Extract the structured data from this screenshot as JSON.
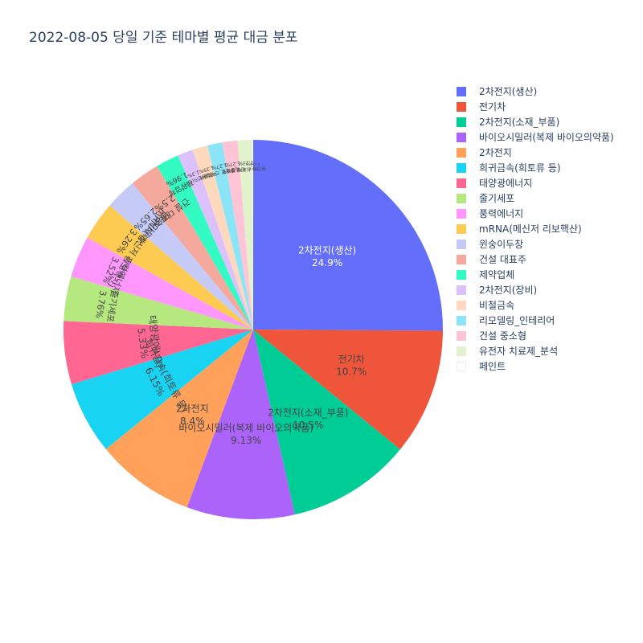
{
  "chart_data": {
    "type": "pie",
    "title": "2022-08-05 당일 기준 테마별 평균 대금 분포",
    "slices": [
      {
        "label": "2차전지(생산)",
        "value": 24.9,
        "text": "24.9%",
        "color": "#636efa"
      },
      {
        "label": "전기차",
        "value": 10.7,
        "text": "10.7%",
        "color": "#EF553B"
      },
      {
        "label": "2차전지(소재_부품)",
        "value": 10.5,
        "text": "10.5%",
        "color": "#00cc96"
      },
      {
        "label": "바이오시밀러(복제 바이오의약품)",
        "value": 9.13,
        "text": "9.13%",
        "color": "#ab63fa"
      },
      {
        "label": "2차전지",
        "value": 8.4,
        "text": "8.4%",
        "color": "#FFA15A"
      },
      {
        "label": "희귀금속(희토류 등)",
        "value": 6.15,
        "text": "6.15%",
        "color": "#19d3f3"
      },
      {
        "label": "태양광에너지",
        "value": 5.33,
        "text": "5.33%",
        "color": "#FF6692"
      },
      {
        "label": "줄기세포",
        "value": 3.76,
        "text": "3.76%",
        "color": "#B6E880"
      },
      {
        "label": "풍력에너지",
        "value": 3.52,
        "text": "3.52%",
        "color": "#FF97FF"
      },
      {
        "label": "mRNA(메신저 리보핵산)",
        "value": 3.26,
        "text": "3.26%",
        "color": "#FECB52"
      },
      {
        "label": "윈숭이두창",
        "value": 2.65,
        "text": "2.65%",
        "color": "#c6caf6"
      },
      {
        "label": "건설 대표주",
        "value": 2.5,
        "text": "2.5%",
        "color": "#f5a99d"
      },
      {
        "label": "제약업체",
        "value": 1.96,
        "text": "1.96%",
        "color": "#33fbc3"
      },
      {
        "label": "2차전지(장비)",
        "value": 1.3,
        "text": "1.3%",
        "color": "#ddc1fd"
      },
      {
        "label": "비철금속",
        "value": 1.29,
        "text": "1.29%",
        "color": "#ffd9bd"
      },
      {
        "label": "리모델링_인테리어",
        "value": 1.27,
        "text": "1.27%",
        "color": "#8ce4f7"
      },
      {
        "label": "건설 중소형",
        "value": 1.27,
        "text": "1.27%",
        "color": "#ffc4d6"
      },
      {
        "label": "유전자 치료제_분석",
        "value": 1.23,
        "text": "1.23%",
        "color": "#e2f2cc"
      },
      {
        "label": "페인트",
        "value": 0.0788,
        "text": "0.0788%",
        "color": "#ffffff"
      }
    ]
  }
}
